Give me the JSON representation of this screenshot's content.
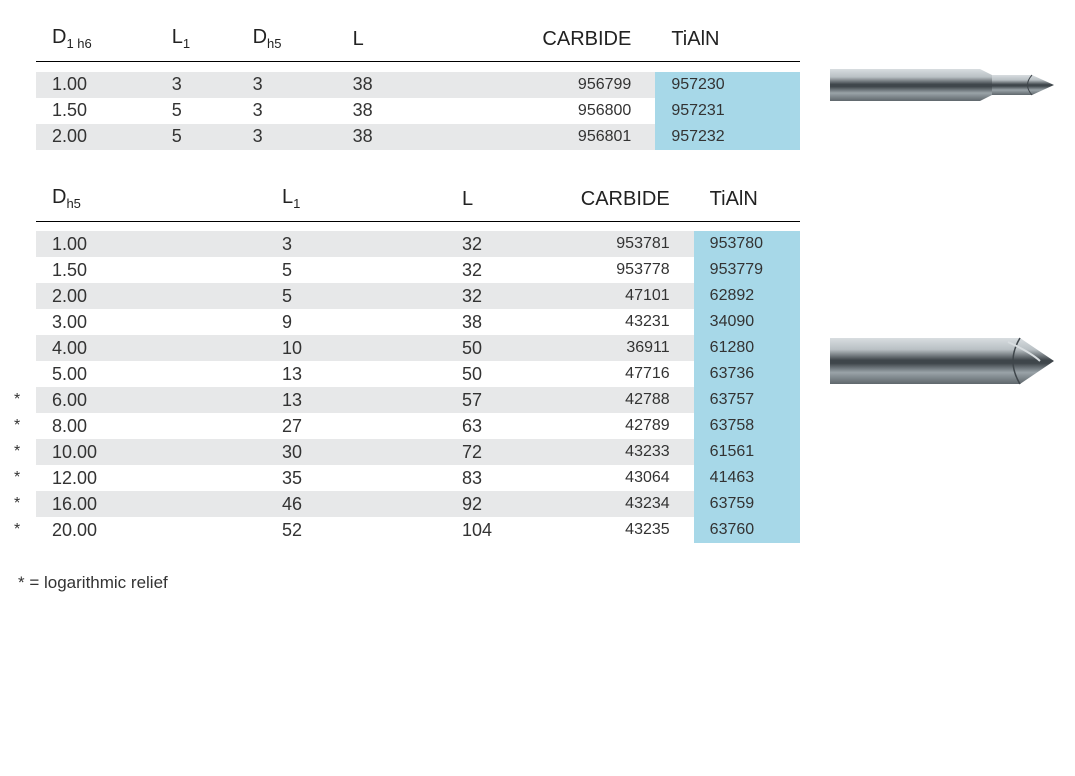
{
  "colors": {
    "row_even": "#e7e8e9",
    "row_odd": "#ffffff",
    "highlight": "#a7d8e8",
    "text": "#333333",
    "rule": "#000000"
  },
  "table1": {
    "headers": {
      "c0": "D",
      "c0sub": "1 h6",
      "c1": "L",
      "c1sub": "1",
      "c2": "D",
      "c2sub": "h5",
      "c3": "L",
      "c4": "CARBIDE",
      "c5": "TiAlN"
    },
    "rows": [
      {
        "star": "",
        "d": "1.00",
        "l1": "3",
        "dh5": "3",
        "l": "38",
        "carbide": "956799",
        "tialn": "957230",
        "bg": "#e7e8e9"
      },
      {
        "star": "",
        "d": "1.50",
        "l1": "5",
        "dh5": "3",
        "l": "38",
        "carbide": "956800",
        "tialn": "957231",
        "bg": "#ffffff"
      },
      {
        "star": "",
        "d": "2.00",
        "l1": "5",
        "dh5": "3",
        "l": "38",
        "carbide": "956801",
        "tialn": "957232",
        "bg": "#e7e8e9"
      }
    ]
  },
  "table2": {
    "headers": {
      "c0": "D",
      "c0sub": "h5",
      "c1": "L",
      "c1sub": "1",
      "c2": "L",
      "c3": "CARBIDE",
      "c4": "TiAlN"
    },
    "rows": [
      {
        "star": "",
        "d": "1.00",
        "l1": "3",
        "l": "32",
        "carbide": "953781",
        "tialn": "953780",
        "bg": "#e7e8e9"
      },
      {
        "star": "",
        "d": "1.50",
        "l1": "5",
        "l": "32",
        "carbide": "953778",
        "tialn": "953779",
        "bg": "#ffffff"
      },
      {
        "star": "",
        "d": "2.00",
        "l1": "5",
        "l": "32",
        "carbide": "47101",
        "tialn": "62892",
        "bg": "#e7e8e9"
      },
      {
        "star": "",
        "d": "3.00",
        "l1": "9",
        "l": "38",
        "carbide": "43231",
        "tialn": "34090",
        "bg": "#ffffff"
      },
      {
        "star": "",
        "d": "4.00",
        "l1": "10",
        "l": "50",
        "carbide": "36911",
        "tialn": "61280",
        "bg": "#e7e8e9"
      },
      {
        "star": "",
        "d": "5.00",
        "l1": "13",
        "l": "50",
        "carbide": "47716",
        "tialn": "63736",
        "bg": "#ffffff"
      },
      {
        "star": "*",
        "d": "6.00",
        "l1": "13",
        "l": "57",
        "carbide": "42788",
        "tialn": "63757",
        "bg": "#e7e8e9"
      },
      {
        "star": "*",
        "d": "8.00",
        "l1": "27",
        "l": "63",
        "carbide": "42789",
        "tialn": "63758",
        "bg": "#ffffff"
      },
      {
        "star": "*",
        "d": "10.00",
        "l1": "30",
        "l": "72",
        "carbide": "43233",
        "tialn": "61561",
        "bg": "#e7e8e9"
      },
      {
        "star": "*",
        "d": "12.00",
        "l1": "35",
        "l": "83",
        "carbide": "43064",
        "tialn": "41463",
        "bg": "#ffffff"
      },
      {
        "star": "*",
        "d": "16.00",
        "l1": "46",
        "l": "92",
        "carbide": "43234",
        "tialn": "63759",
        "bg": "#e7e8e9"
      },
      {
        "star": "*",
        "d": "20.00",
        "l1": "52",
        "l": "104",
        "carbide": "43235",
        "tialn": "63760",
        "bg": "#ffffff"
      }
    ]
  },
  "note": "* = logarithmic relief",
  "drill_colors": {
    "body_light": "#b9c0c4",
    "body_mid": "#9aa3a8",
    "body_dark": "#5f676c",
    "groove": "#3f464b",
    "highlight": "#d8dde0"
  }
}
